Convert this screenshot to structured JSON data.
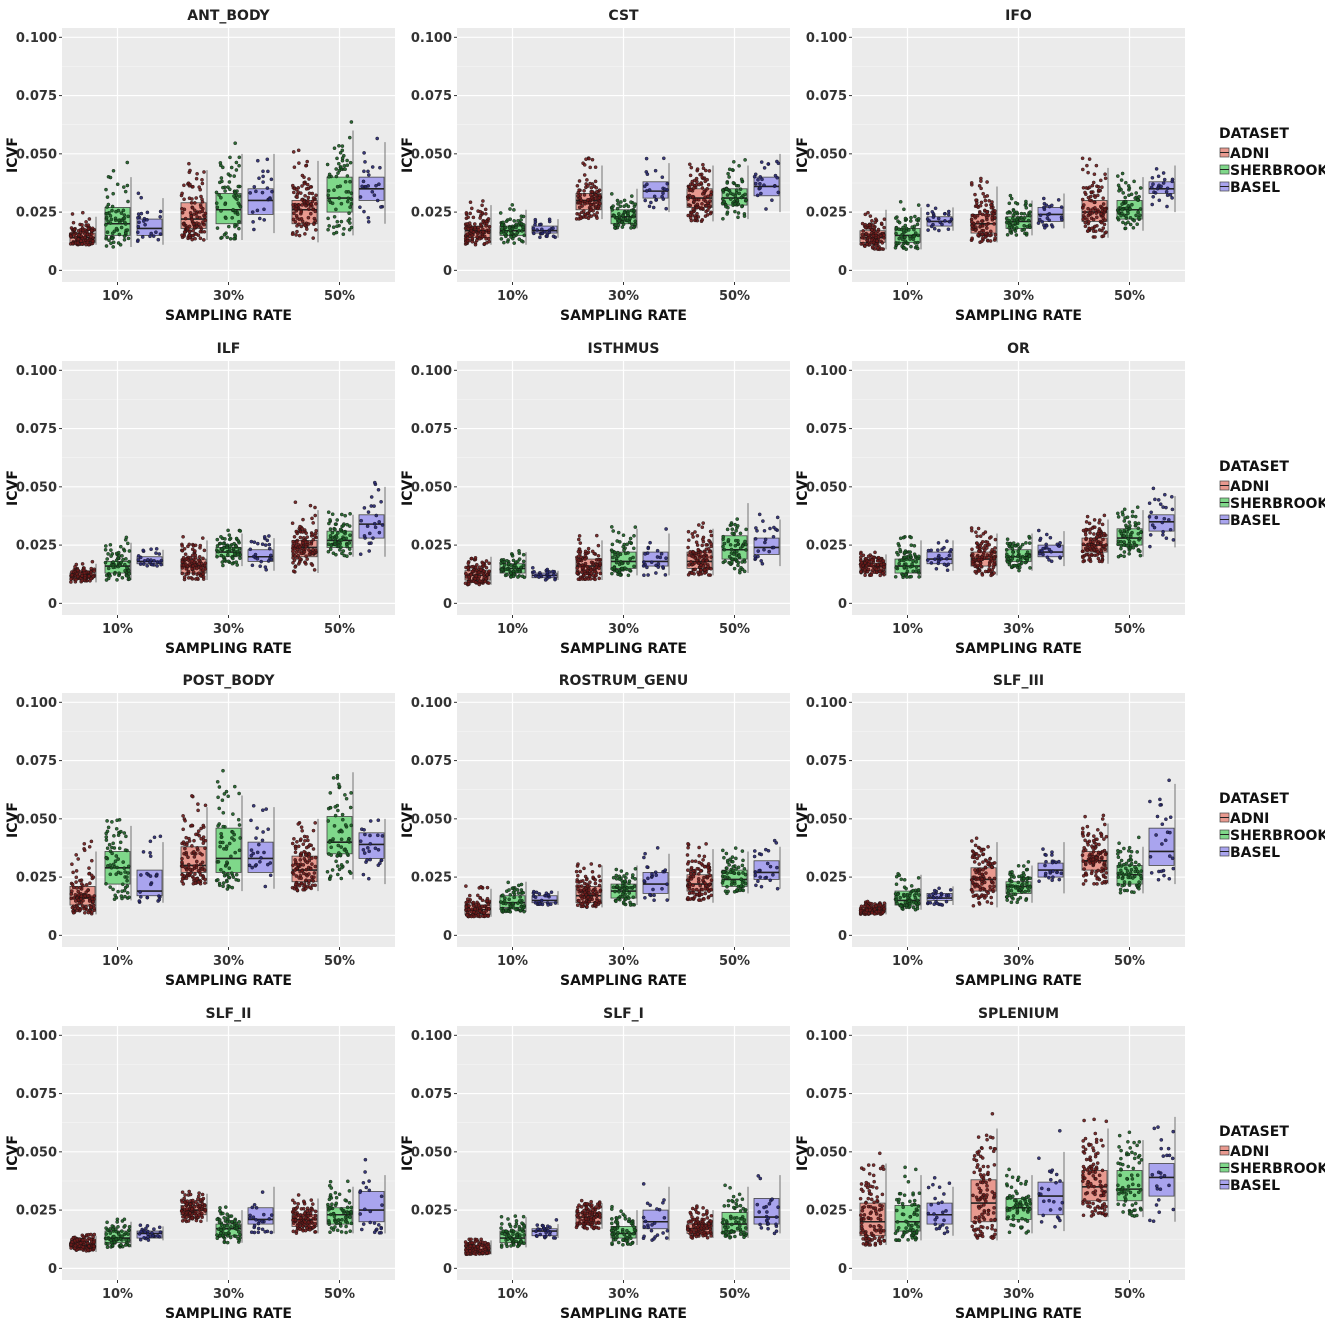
{
  "chart_data": {
    "type": "boxplot",
    "figure_description": "ICVF by sampling rate and dataset, 12 white-matter tracts",
    "ylabel": "ICVF",
    "xlabel": "SAMPLING RATE",
    "categories": [
      "10%",
      "30%",
      "50%"
    ],
    "y_ticks": [
      0,
      0.025,
      0.05,
      0.075,
      0.1
    ],
    "y_tick_labels": [
      "0",
      "0.025",
      "0.050",
      "0.075",
      "0.100"
    ],
    "ylim": [
      -0.005,
      0.104
    ],
    "legend": {
      "title": "DATASET",
      "entries": [
        {
          "name": "ADNI",
          "fill": "#e8998f",
          "point": "#6b1a1a",
          "n": 110
        },
        {
          "name": "SHERBROOKE",
          "fill": "#7fd88a",
          "point": "#1a5c22",
          "n": 70
        },
        {
          "name": "BASEL",
          "fill": "#a9a4ee",
          "point": "#25256b",
          "n": 25
        }
      ]
    },
    "panels": [
      {
        "title": "ANT_BODY",
        "stats": [
          [
            [
              0.011,
              0.012,
              0.014,
              0.016,
              0.023
            ],
            [
              0.01,
              0.015,
              0.02,
              0.027,
              0.04
            ],
            [
              0.011,
              0.015,
              0.018,
              0.022,
              0.031
            ]
          ],
          [
            [
              0.013,
              0.018,
              0.022,
              0.029,
              0.043
            ],
            [
              0.013,
              0.02,
              0.026,
              0.033,
              0.05
            ],
            [
              0.016,
              0.024,
              0.03,
              0.035,
              0.05
            ]
          ],
          [
            [
              0.012,
              0.02,
              0.026,
              0.03,
              0.047
            ],
            [
              0.015,
              0.025,
              0.031,
              0.04,
              0.06
            ],
            [
              0.02,
              0.03,
              0.035,
              0.04,
              0.055
            ]
          ]
        ]
      },
      {
        "title": "CST",
        "stats": [
          [
            [
              0.011,
              0.014,
              0.017,
              0.019,
              0.028
            ],
            [
              0.011,
              0.015,
              0.017,
              0.019,
              0.026
            ],
            [
              0.014,
              0.016,
              0.017,
              0.019,
              0.022
            ]
          ],
          [
            [
              0.022,
              0.026,
              0.03,
              0.033,
              0.045
            ],
            [
              0.018,
              0.02,
              0.023,
              0.026,
              0.035
            ],
            [
              0.025,
              0.031,
              0.034,
              0.038,
              0.046
            ]
          ],
          [
            [
              0.021,
              0.027,
              0.031,
              0.035,
              0.045
            ],
            [
              0.022,
              0.028,
              0.031,
              0.035,
              0.045
            ],
            [
              0.025,
              0.032,
              0.036,
              0.04,
              0.05
            ]
          ]
        ]
      },
      {
        "title": "IFO",
        "stats": [
          [
            [
              0.009,
              0.012,
              0.014,
              0.017,
              0.026
            ],
            [
              0.009,
              0.012,
              0.015,
              0.018,
              0.027
            ],
            [
              0.017,
              0.019,
              0.021,
              0.023,
              0.027
            ]
          ],
          [
            [
              0.012,
              0.016,
              0.02,
              0.024,
              0.036
            ],
            [
              0.015,
              0.018,
              0.021,
              0.023,
              0.03
            ],
            [
              0.018,
              0.021,
              0.024,
              0.027,
              0.033
            ]
          ],
          [
            [
              0.014,
              0.021,
              0.025,
              0.03,
              0.044
            ],
            [
              0.017,
              0.022,
              0.026,
              0.03,
              0.04
            ],
            [
              0.025,
              0.033,
              0.035,
              0.038,
              0.045
            ]
          ]
        ]
      },
      {
        "title": "ILF",
        "stats": [
          [
            [
              0.009,
              0.011,
              0.012,
              0.013,
              0.017
            ],
            [
              0.01,
              0.013,
              0.016,
              0.018,
              0.026
            ],
            [
              0.016,
              0.017,
              0.018,
              0.02,
              0.023
            ]
          ],
          [
            [
              0.01,
              0.013,
              0.016,
              0.019,
              0.027
            ],
            [
              0.016,
              0.02,
              0.022,
              0.024,
              0.03
            ],
            [
              0.014,
              0.018,
              0.02,
              0.023,
              0.028
            ]
          ],
          [
            [
              0.013,
              0.02,
              0.024,
              0.027,
              0.04
            ],
            [
              0.02,
              0.024,
              0.027,
              0.031,
              0.038
            ],
            [
              0.02,
              0.028,
              0.034,
              0.038,
              0.05
            ]
          ]
        ]
      },
      {
        "title": "ISTHMUS",
        "stats": [
          [
            [
              0.008,
              0.01,
              0.012,
              0.014,
              0.02
            ],
            [
              0.011,
              0.013,
              0.015,
              0.017,
              0.022
            ],
            [
              0.01,
              0.011,
              0.012,
              0.013,
              0.014
            ]
          ],
          [
            [
              0.01,
              0.013,
              0.016,
              0.019,
              0.027
            ],
            [
              0.012,
              0.015,
              0.018,
              0.022,
              0.032
            ],
            [
              0.012,
              0.016,
              0.018,
              0.022,
              0.03
            ]
          ],
          [
            [
              0.012,
              0.015,
              0.018,
              0.022,
              0.032
            ],
            [
              0.013,
              0.019,
              0.023,
              0.029,
              0.043
            ],
            [
              0.016,
              0.021,
              0.024,
              0.028,
              0.036
            ]
          ]
        ]
      },
      {
        "title": "OR",
        "stats": [
          [
            [
              0.012,
              0.014,
              0.016,
              0.017,
              0.021
            ],
            [
              0.011,
              0.013,
              0.016,
              0.019,
              0.027
            ],
            [
              0.014,
              0.017,
              0.019,
              0.022,
              0.027
            ]
          ],
          [
            [
              0.012,
              0.016,
              0.019,
              0.022,
              0.03
            ],
            [
              0.014,
              0.018,
              0.02,
              0.023,
              0.03
            ],
            [
              0.016,
              0.02,
              0.022,
              0.025,
              0.031
            ]
          ],
          [
            [
              0.017,
              0.022,
              0.025,
              0.028,
              0.036
            ],
            [
              0.02,
              0.025,
              0.028,
              0.032,
              0.04
            ],
            [
              0.024,
              0.031,
              0.035,
              0.038,
              0.046
            ]
          ]
        ]
      },
      {
        "title": "POST_BODY",
        "stats": [
          [
            [
              0.009,
              0.013,
              0.016,
              0.021,
              0.036
            ],
            [
              0.015,
              0.022,
              0.029,
              0.036,
              0.047
            ],
            [
              0.014,
              0.017,
              0.019,
              0.028,
              0.04
            ]
          ],
          [
            [
              0.022,
              0.027,
              0.03,
              0.038,
              0.055
            ],
            [
              0.019,
              0.027,
              0.033,
              0.046,
              0.06
            ],
            [
              0.02,
              0.027,
              0.033,
              0.04,
              0.055
            ]
          ],
          [
            [
              0.019,
              0.023,
              0.028,
              0.034,
              0.05
            ],
            [
              0.024,
              0.035,
              0.04,
              0.051,
              0.07
            ],
            [
              0.022,
              0.033,
              0.039,
              0.044,
              0.05
            ]
          ]
        ]
      },
      {
        "title": "ROSTRUM_GENU",
        "stats": [
          [
            [
              0.008,
              0.009,
              0.011,
              0.013,
              0.02
            ],
            [
              0.01,
              0.012,
              0.014,
              0.017,
              0.023
            ],
            [
              0.013,
              0.014,
              0.015,
              0.017,
              0.019
            ]
          ],
          [
            [
              0.012,
              0.014,
              0.017,
              0.021,
              0.03
            ],
            [
              0.013,
              0.016,
              0.019,
              0.022,
              0.03
            ],
            [
              0.015,
              0.018,
              0.022,
              0.027,
              0.035
            ]
          ],
          [
            [
              0.014,
              0.019,
              0.022,
              0.026,
              0.037
            ],
            [
              0.018,
              0.021,
              0.024,
              0.028,
              0.036
            ],
            [
              0.02,
              0.024,
              0.027,
              0.032,
              0.038
            ]
          ]
        ]
      },
      {
        "title": "SLF_III",
        "stats": [
          [
            [
              0.009,
              0.01,
              0.011,
              0.012,
              0.014
            ],
            [
              0.011,
              0.013,
              0.015,
              0.019,
              0.026
            ],
            [
              0.013,
              0.015,
              0.016,
              0.018,
              0.021
            ]
          ],
          [
            [
              0.012,
              0.019,
              0.024,
              0.029,
              0.04
            ],
            [
              0.014,
              0.018,
              0.021,
              0.023,
              0.03
            ],
            [
              0.018,
              0.025,
              0.028,
              0.031,
              0.04
            ]
          ],
          [
            [
              0.022,
              0.028,
              0.032,
              0.036,
              0.048
            ],
            [
              0.018,
              0.022,
              0.026,
              0.03,
              0.038
            ],
            [
              0.022,
              0.03,
              0.036,
              0.046,
              0.065
            ]
          ]
        ]
      },
      {
        "title": "SLF_II",
        "stats": [
          [
            [
              0.007,
              0.009,
              0.01,
              0.011,
              0.014
            ],
            [
              0.009,
              0.011,
              0.013,
              0.016,
              0.02
            ],
            [
              0.012,
              0.013,
              0.015,
              0.016,
              0.018
            ]
          ],
          [
            [
              0.02,
              0.023,
              0.025,
              0.027,
              0.032
            ],
            [
              0.011,
              0.014,
              0.017,
              0.019,
              0.025
            ],
            [
              0.015,
              0.019,
              0.021,
              0.026,
              0.035
            ]
          ],
          [
            [
              0.015,
              0.018,
              0.021,
              0.023,
              0.03
            ],
            [
              0.015,
              0.019,
              0.023,
              0.026,
              0.035
            ],
            [
              0.015,
              0.02,
              0.025,
              0.033,
              0.04
            ]
          ]
        ]
      },
      {
        "title": "SLF_I",
        "stats": [
          [
            [
              0.006,
              0.007,
              0.008,
              0.01,
              0.012
            ],
            [
              0.009,
              0.011,
              0.013,
              0.016,
              0.022
            ],
            [
              0.013,
              0.014,
              0.016,
              0.017,
              0.019
            ]
          ],
          [
            [
              0.017,
              0.019,
              0.022,
              0.024,
              0.028
            ],
            [
              0.01,
              0.013,
              0.015,
              0.018,
              0.025
            ],
            [
              0.012,
              0.017,
              0.02,
              0.025,
              0.035
            ]
          ],
          [
            [
              0.013,
              0.015,
              0.017,
              0.019,
              0.025
            ],
            [
              0.013,
              0.016,
              0.019,
              0.024,
              0.035
            ],
            [
              0.015,
              0.019,
              0.022,
              0.03,
              0.04
            ]
          ]
        ]
      },
      {
        "title": "SPLENIUM",
        "stats": [
          [
            [
              0.01,
              0.014,
              0.02,
              0.028,
              0.045
            ],
            [
              0.012,
              0.016,
              0.02,
              0.027,
              0.04
            ],
            [
              0.014,
              0.019,
              0.023,
              0.028,
              0.035
            ]
          ],
          [
            [
              0.012,
              0.02,
              0.028,
              0.038,
              0.06
            ],
            [
              0.015,
              0.021,
              0.026,
              0.03,
              0.04
            ],
            [
              0.016,
              0.023,
              0.031,
              0.037,
              0.05
            ]
          ],
          [
            [
              0.022,
              0.029,
              0.035,
              0.042,
              0.06
            ],
            [
              0.022,
              0.029,
              0.034,
              0.042,
              0.055
            ],
            [
              0.02,
              0.031,
              0.039,
              0.045,
              0.065
            ]
          ]
        ]
      }
    ]
  }
}
